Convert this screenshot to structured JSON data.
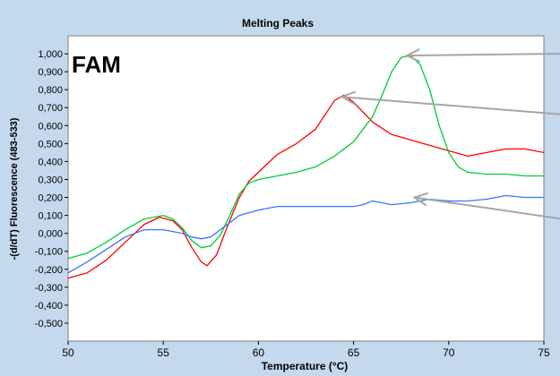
{
  "chart_data": {
    "type": "line",
    "title": "Melting Peaks",
    "xlabel": "Temperature (°C)",
    "ylabel": "-(d/dT) Fluorescence (483-533)",
    "annotation": "FAM",
    "xlim": [
      50,
      75
    ],
    "ylim": [
      -0.6,
      1.1
    ],
    "xticks": [
      50,
      55,
      60,
      65,
      70,
      75
    ],
    "xtick_labels": [
      "50",
      "55",
      "60",
      "65",
      "70",
      "75"
    ],
    "yticks": [
      1.0,
      0.9,
      0.8,
      0.7,
      0.6,
      0.5,
      0.4,
      0.3,
      0.2,
      0.1,
      0.0,
      -0.1,
      -0.2,
      -0.3,
      -0.4,
      -0.5
    ],
    "ytick_labels": [
      "1,000",
      "0,900",
      "0,800",
      "0,700",
      "0,600",
      "0,500",
      "0,400",
      "0,300",
      "0,200",
      "0,100",
      "0,000",
      "-0,100",
      "-0,200",
      "-0,300",
      "-0,400",
      "-0,500"
    ],
    "grid": false,
    "series": [
      {
        "color": "#ff0000",
        "x": [
          50,
          51,
          52,
          53,
          54,
          54.8,
          55.5,
          56,
          56.5,
          57,
          57.3,
          57.8,
          58.3,
          59,
          59.5,
          60,
          61,
          62,
          63,
          64,
          64.5,
          65,
          66,
          67,
          68,
          69,
          70,
          71,
          72,
          73,
          74,
          75
        ],
        "y": [
          -0.25,
          -0.22,
          -0.15,
          -0.05,
          0.05,
          0.09,
          0.07,
          0.02,
          -0.08,
          -0.16,
          -0.18,
          -0.12,
          0.02,
          0.2,
          0.29,
          0.34,
          0.44,
          0.5,
          0.58,
          0.74,
          0.77,
          0.73,
          0.62,
          0.55,
          0.52,
          0.49,
          0.46,
          0.43,
          0.45,
          0.47,
          0.47,
          0.45
        ]
      },
      {
        "color": "#00cc33",
        "x": [
          50,
          51,
          52,
          53,
          54,
          55,
          55.5,
          56,
          56.5,
          57,
          57.5,
          58,
          58.5,
          59,
          59.5,
          60,
          61,
          62,
          63,
          64,
          65,
          66,
          66.5,
          67,
          67.5,
          68,
          68.5,
          69,
          69.5,
          70,
          70.5,
          71,
          72,
          73,
          74,
          75
        ],
        "y": [
          -0.14,
          -0.11,
          -0.05,
          0.02,
          0.08,
          0.1,
          0.08,
          0.03,
          -0.04,
          -0.08,
          -0.07,
          -0.01,
          0.1,
          0.22,
          0.28,
          0.3,
          0.32,
          0.34,
          0.37,
          0.43,
          0.51,
          0.65,
          0.77,
          0.9,
          0.98,
          0.99,
          0.94,
          0.8,
          0.6,
          0.45,
          0.37,
          0.34,
          0.33,
          0.33,
          0.32,
          0.32
        ]
      },
      {
        "color": "#3377ff",
        "x": [
          50,
          51,
          52,
          53,
          54,
          55,
          56,
          56.5,
          57,
          57.5,
          58,
          59,
          60,
          61,
          62,
          63,
          64,
          65,
          65.5,
          66,
          67,
          68,
          69,
          70,
          71,
          72,
          73,
          74,
          75
        ],
        "y": [
          -0.22,
          -0.16,
          -0.09,
          -0.02,
          0.02,
          0.02,
          0.0,
          -0.02,
          -0.03,
          -0.02,
          0.02,
          0.1,
          0.13,
          0.15,
          0.15,
          0.15,
          0.15,
          0.15,
          0.16,
          0.18,
          0.16,
          0.17,
          0.19,
          0.18,
          0.18,
          0.19,
          0.21,
          0.2,
          0.2
        ]
      }
    ],
    "arrows": [
      {
        "to": [
          67.8,
          0.99
        ]
      },
      {
        "to": [
          64.4,
          0.76
        ]
      },
      {
        "to": [
          68.2,
          0.2
        ]
      }
    ]
  }
}
